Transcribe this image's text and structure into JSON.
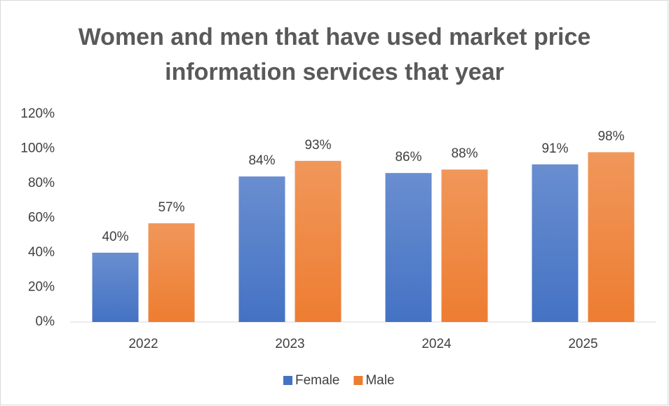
{
  "chart_data": {
    "type": "bar",
    "title": "Women and men that have used market price information services that year",
    "categories": [
      "2022",
      "2023",
      "2024",
      "2025"
    ],
    "series": [
      {
        "name": "Female",
        "color": "#4472c4",
        "values": [
          40,
          84,
          86,
          91
        ],
        "value_labels": [
          "40%",
          "84%",
          "86%",
          "91%"
        ]
      },
      {
        "name": "Male",
        "color": "#ed7d31",
        "values": [
          57,
          93,
          88,
          98
        ],
        "value_labels": [
          "57%",
          "93%",
          "88%",
          "98%"
        ]
      }
    ],
    "ylim": [
      0,
      120
    ],
    "yticks": [
      {
        "value": 0,
        "label": "0%"
      },
      {
        "value": 20,
        "label": "20%"
      },
      {
        "value": 40,
        "label": "40%"
      },
      {
        "value": 60,
        "label": "60%"
      },
      {
        "value": 80,
        "label": "80%"
      },
      {
        "value": 100,
        "label": "100%"
      },
      {
        "value": 120,
        "label": "120%"
      }
    ],
    "grid": false,
    "legend": "bottom"
  }
}
